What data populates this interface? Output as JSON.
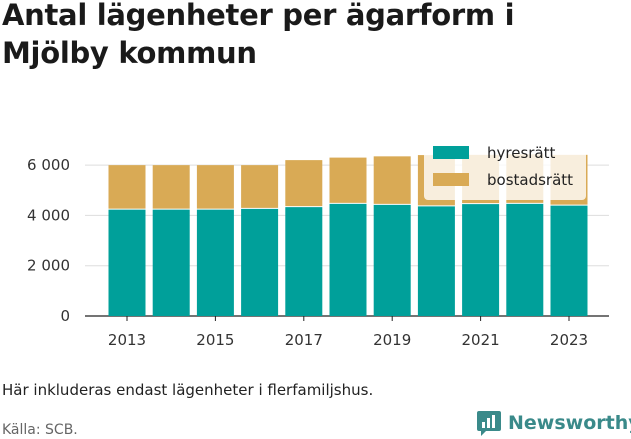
{
  "title": "Antal lägenheter per ägarform i Mjölby kommun",
  "note": "Här inkluderas endast lägenheter i flerfamiljshus.",
  "source": "Källa: SCB.",
  "brand": {
    "name": "Newsworthy",
    "color": "#3a8a8a"
  },
  "chart_data": {
    "type": "bar",
    "stacked": true,
    "categories": [
      "2013",
      "2014",
      "2015",
      "2016",
      "2017",
      "2018",
      "2019",
      "2020",
      "2021",
      "2022",
      "2023"
    ],
    "x_tick_labels": [
      "2013",
      "2015",
      "2017",
      "2019",
      "2021",
      "2023"
    ],
    "series": [
      {
        "name": "hyresrätt",
        "color": "#00a09a",
        "values": [
          4230,
          4230,
          4230,
          4260,
          4330,
          4460,
          4420,
          4360,
          4450,
          4460,
          4390
        ]
      },
      {
        "name": "bostadsrätt",
        "color": "#d9aa55",
        "values": [
          1770,
          1770,
          1770,
          1740,
          1870,
          1840,
          1930,
          2040,
          1960,
          1970,
          2020
        ]
      }
    ],
    "ylim": [
      0,
      7000
    ],
    "y_ticks": [
      0,
      2000,
      4000,
      6000
    ],
    "y_tick_labels": [
      "0",
      "2 000",
      "4 000",
      "6 000"
    ],
    "grid": true,
    "legend": "top-right"
  }
}
